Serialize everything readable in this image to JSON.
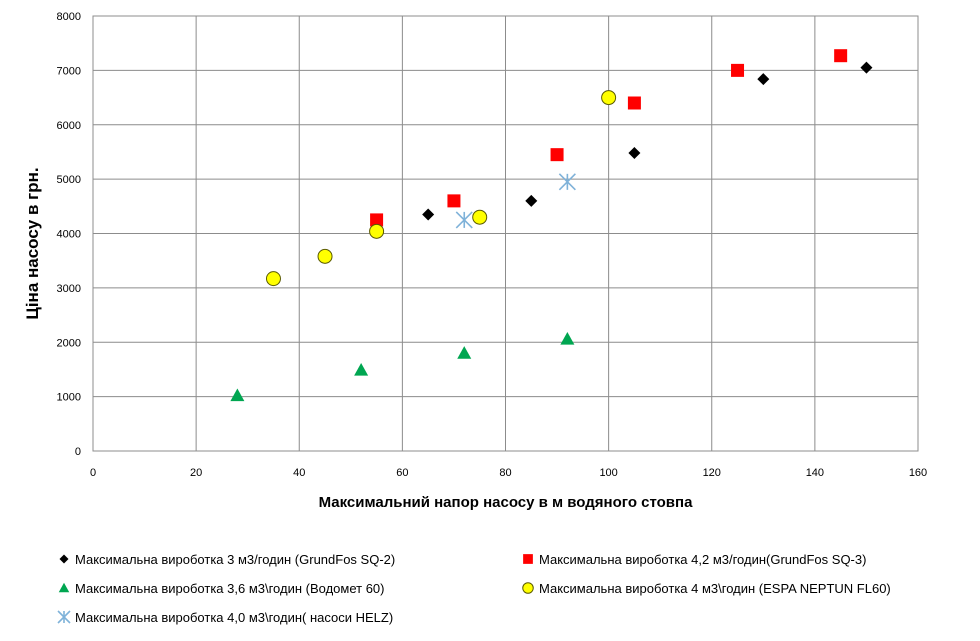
{
  "chart_data": {
    "type": "scatter",
    "title": "",
    "xlabel": "Максимальний напор насосу в м водяного стовпа",
    "ylabel": "Ціна насосу в грн.",
    "xlim": [
      0,
      160
    ],
    "ylim": [
      0,
      8000
    ],
    "x_ticks": [
      "0",
      "20",
      "40",
      "60",
      "80",
      "100",
      "120",
      "140",
      "160"
    ],
    "y_ticks": [
      "0",
      "1000",
      "2000",
      "3000",
      "4000",
      "5000",
      "6000",
      "7000",
      "8000"
    ],
    "grid": true,
    "legend_position": "bottom",
    "series": [
      {
        "name": "Максимальна вироботка 3 м3/годин (GrundFos SQ-2)",
        "marker": "diamond",
        "color": "#000000",
        "points": [
          {
            "x": 65,
            "y": 4350
          },
          {
            "x": 85,
            "y": 4600
          },
          {
            "x": 105,
            "y": 5480
          },
          {
            "x": 130,
            "y": 6840
          },
          {
            "x": 150,
            "y": 7050
          }
        ]
      },
      {
        "name": "Максимальна вироботка 4,2 м3/годин(GrundFos SQ-3)",
        "marker": "square",
        "color": "#ff0000",
        "points": [
          {
            "x": 55,
            "y": 4250
          },
          {
            "x": 70,
            "y": 4600
          },
          {
            "x": 90,
            "y": 5450
          },
          {
            "x": 105,
            "y": 6400
          },
          {
            "x": 125,
            "y": 7000
          },
          {
            "x": 145,
            "y": 7270
          }
        ]
      },
      {
        "name": "Максимальна вироботка 3,6 м3\\годин (Водомет 60)",
        "marker": "triangle",
        "color": "#00a651",
        "points": [
          {
            "x": 28,
            "y": 1020
          },
          {
            "x": 52,
            "y": 1490
          },
          {
            "x": 72,
            "y": 1800
          },
          {
            "x": 92,
            "y": 2060
          }
        ]
      },
      {
        "name": "Максимальна вироботка 4 м3\\годин (ESPA NEPTUN FL60)",
        "marker": "circle",
        "color": "#ffff00",
        "points": [
          {
            "x": 35,
            "y": 3170
          },
          {
            "x": 45,
            "y": 3580
          },
          {
            "x": 55,
            "y": 4040
          },
          {
            "x": 75,
            "y": 4300
          },
          {
            "x": 100,
            "y": 6500
          }
        ]
      },
      {
        "name": "Максимальна вироботка 4,0 м3\\годин( насоси HELZ)",
        "marker": "asterisk",
        "color": "#7fb2d9",
        "points": [
          {
            "x": 72,
            "y": 4250
          },
          {
            "x": 92,
            "y": 4950
          }
        ]
      }
    ]
  }
}
